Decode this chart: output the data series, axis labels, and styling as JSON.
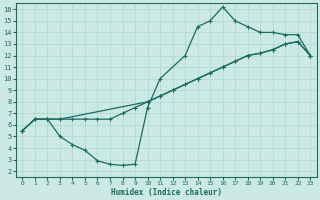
{
  "xlabel": "Humidex (Indice chaleur)",
  "bg_color": "#cce9e4",
  "line_color": "#1a6b60",
  "grid_color": "#aad8d0",
  "xlim": [
    -0.5,
    23.5
  ],
  "ylim": [
    1.5,
    16.5
  ],
  "xticks": [
    0,
    1,
    2,
    3,
    4,
    5,
    6,
    7,
    8,
    9,
    10,
    11,
    12,
    13,
    14,
    15,
    16,
    17,
    18,
    19,
    20,
    21,
    22,
    23
  ],
  "yticks": [
    2,
    3,
    4,
    5,
    6,
    7,
    8,
    9,
    10,
    11,
    12,
    13,
    14,
    15,
    16
  ],
  "curve1_x": [
    0,
    1,
    2,
    3,
    4,
    5,
    6,
    7,
    8,
    9,
    10,
    11,
    13,
    14,
    15,
    16,
    17,
    18,
    19,
    20,
    21,
    22,
    23
  ],
  "curve1_y": [
    5.5,
    6.5,
    6.5,
    5.0,
    4.3,
    3.8,
    2.9,
    2.6,
    2.5,
    2.6,
    7.5,
    10.0,
    12.0,
    14.5,
    15.0,
    16.2,
    15.0,
    14.5,
    14.0,
    14.0,
    13.8,
    13.8,
    12.0
  ],
  "curve2_x": [
    0,
    1,
    2,
    3,
    10,
    11,
    12,
    13,
    14,
    15,
    16,
    17,
    18,
    19,
    20,
    21,
    22,
    23
  ],
  "curve2_y": [
    5.5,
    6.5,
    6.5,
    6.5,
    8.0,
    8.5,
    9.0,
    9.5,
    10.0,
    10.5,
    11.0,
    11.5,
    12.0,
    12.2,
    12.5,
    13.0,
    13.2,
    12.0
  ],
  "curve3_x": [
    0,
    1,
    2,
    3,
    4,
    5,
    6,
    7,
    8,
    9,
    10,
    11,
    12,
    13,
    14,
    15,
    16,
    17,
    18,
    19,
    20,
    21,
    22,
    23
  ],
  "curve3_y": [
    5.5,
    6.5,
    6.5,
    6.5,
    6.5,
    6.5,
    6.5,
    6.5,
    7.0,
    7.5,
    8.0,
    8.5,
    9.0,
    9.5,
    10.0,
    10.5,
    11.0,
    11.5,
    12.0,
    12.2,
    12.5,
    13.0,
    13.2,
    12.0
  ]
}
